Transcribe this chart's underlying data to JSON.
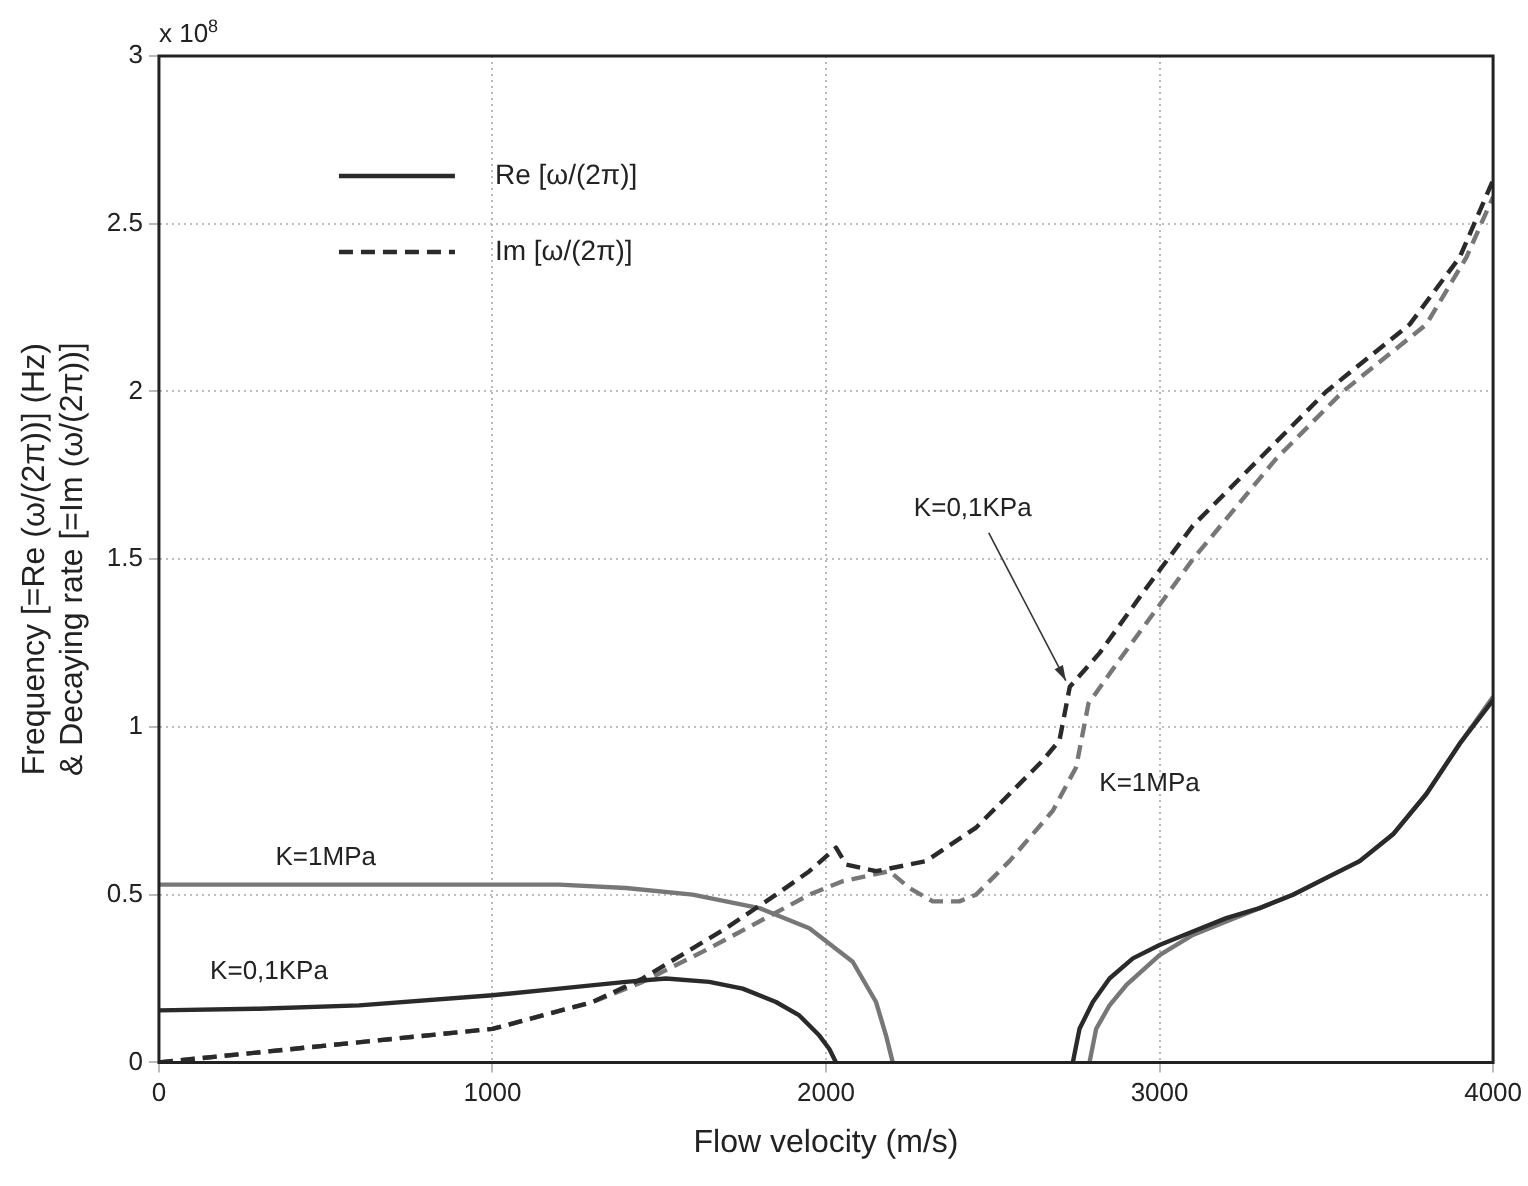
{
  "chart_data": {
    "type": "line",
    "xlabel": "Flow velocity (m/s)",
    "ylabel": "Frequency [=Re (ω/(2π))] (Hz)\n& Decaying rate [=Im (ω/(2π))]",
    "xlim": [
      0,
      4000
    ],
    "xticks": [
      0,
      1000,
      2000,
      3000,
      4000
    ],
    "ylim": [
      0,
      3
    ],
    "yticks": [
      0,
      0.5,
      1,
      1.5,
      2,
      2.5,
      3
    ],
    "grid": true,
    "legend": "top left",
    "marker": "none",
    "series": [
      {
        "name": "Re [ω/(2π)]",
        "color": "#2a2a2a",
        "line_style": "solid",
        "x": [
          0,
          300,
          600,
          1000,
          1200,
          1400,
          1520,
          1650,
          1750,
          1850,
          1920,
          1980,
          2010,
          2030,
          2400,
          2740,
          2760,
          2800,
          2850,
          2920,
          3000,
          3100,
          3200,
          3300,
          3400,
          3500,
          3600,
          3700,
          3800,
          3900,
          4000
        ],
        "values": [
          0.155,
          0.16,
          0.17,
          0.2,
          0.22,
          0.24,
          0.25,
          0.24,
          0.22,
          0.18,
          0.14,
          0.08,
          0.04,
          0,
          null,
          0,
          0.1,
          0.18,
          0.25,
          0.31,
          0.35,
          0.39,
          0.43,
          0.46,
          0.5,
          0.55,
          0.6,
          0.68,
          0.8,
          0.95,
          1.08
        ]
      },
      {
        "name": "Im [ω/(2π)]",
        "color": "#2a2a2a",
        "line_style": "dashed",
        "x": [
          0,
          500,
          1000,
          1300,
          1450,
          1600,
          1700,
          1850,
          1950,
          2030,
          2060,
          2150,
          2300,
          2450,
          2550,
          2650,
          2700,
          2731,
          2820,
          2950,
          3100,
          3300,
          3500,
          3650,
          3750,
          3900,
          4000
        ],
        "values": [
          0,
          0.05,
          0.1,
          0.18,
          0.25,
          0.34,
          0.4,
          0.5,
          0.57,
          0.64,
          0.59,
          0.57,
          0.6,
          0.7,
          0.8,
          0.9,
          0.96,
          1.12,
          1.22,
          1.4,
          1.6,
          1.8,
          2.0,
          2.12,
          2.2,
          2.4,
          2.63
        ]
      },
      {
        "color": "#777777",
        "line_style": "solid",
        "x": [
          0,
          600,
          1000,
          1200,
          1400,
          1600,
          1800,
          1950,
          2080,
          2150,
          2180,
          2200,
          2500,
          2790,
          2810,
          2850,
          2900,
          3000,
          3100,
          3200,
          3300,
          3400,
          3500,
          3600,
          3700,
          3800,
          3900,
          4000
        ],
        "values": [
          0.53,
          0.53,
          0.53,
          0.53,
          0.52,
          0.5,
          0.46,
          0.4,
          0.3,
          0.18,
          0.08,
          0,
          null,
          0,
          0.1,
          0.17,
          0.23,
          0.32,
          0.38,
          0.42,
          0.46,
          0.5,
          0.55,
          0.6,
          0.68,
          0.8,
          0.95,
          1.09
        ]
      },
      {
        "color": "#777777",
        "line_style": "dashed",
        "x": [
          0,
          500,
          1000,
          1300,
          1450,
          1650,
          1800,
          1950,
          2050,
          2190,
          2250,
          2320,
          2400,
          2450,
          2550,
          2680,
          2750,
          2787,
          2880,
          3100,
          3350,
          3550,
          3700,
          3800,
          3920,
          4000
        ],
        "values": [
          0,
          0.05,
          0.1,
          0.18,
          0.24,
          0.34,
          0.42,
          0.5,
          0.54,
          0.57,
          0.52,
          0.48,
          0.48,
          0.5,
          0.6,
          0.75,
          0.88,
          1.07,
          1.2,
          1.5,
          1.8,
          2.0,
          2.12,
          2.2,
          2.4,
          2.58
        ]
      }
    ],
    "annotations": [
      "x 10$^{8}$",
      "K=1MPa",
      "K=0,1KPa",
      {
        "text": "K=0,1KPa",
        "x": 2731,
        "y": 1.12
      },
      "K=1MPa"
    ]
  }
}
